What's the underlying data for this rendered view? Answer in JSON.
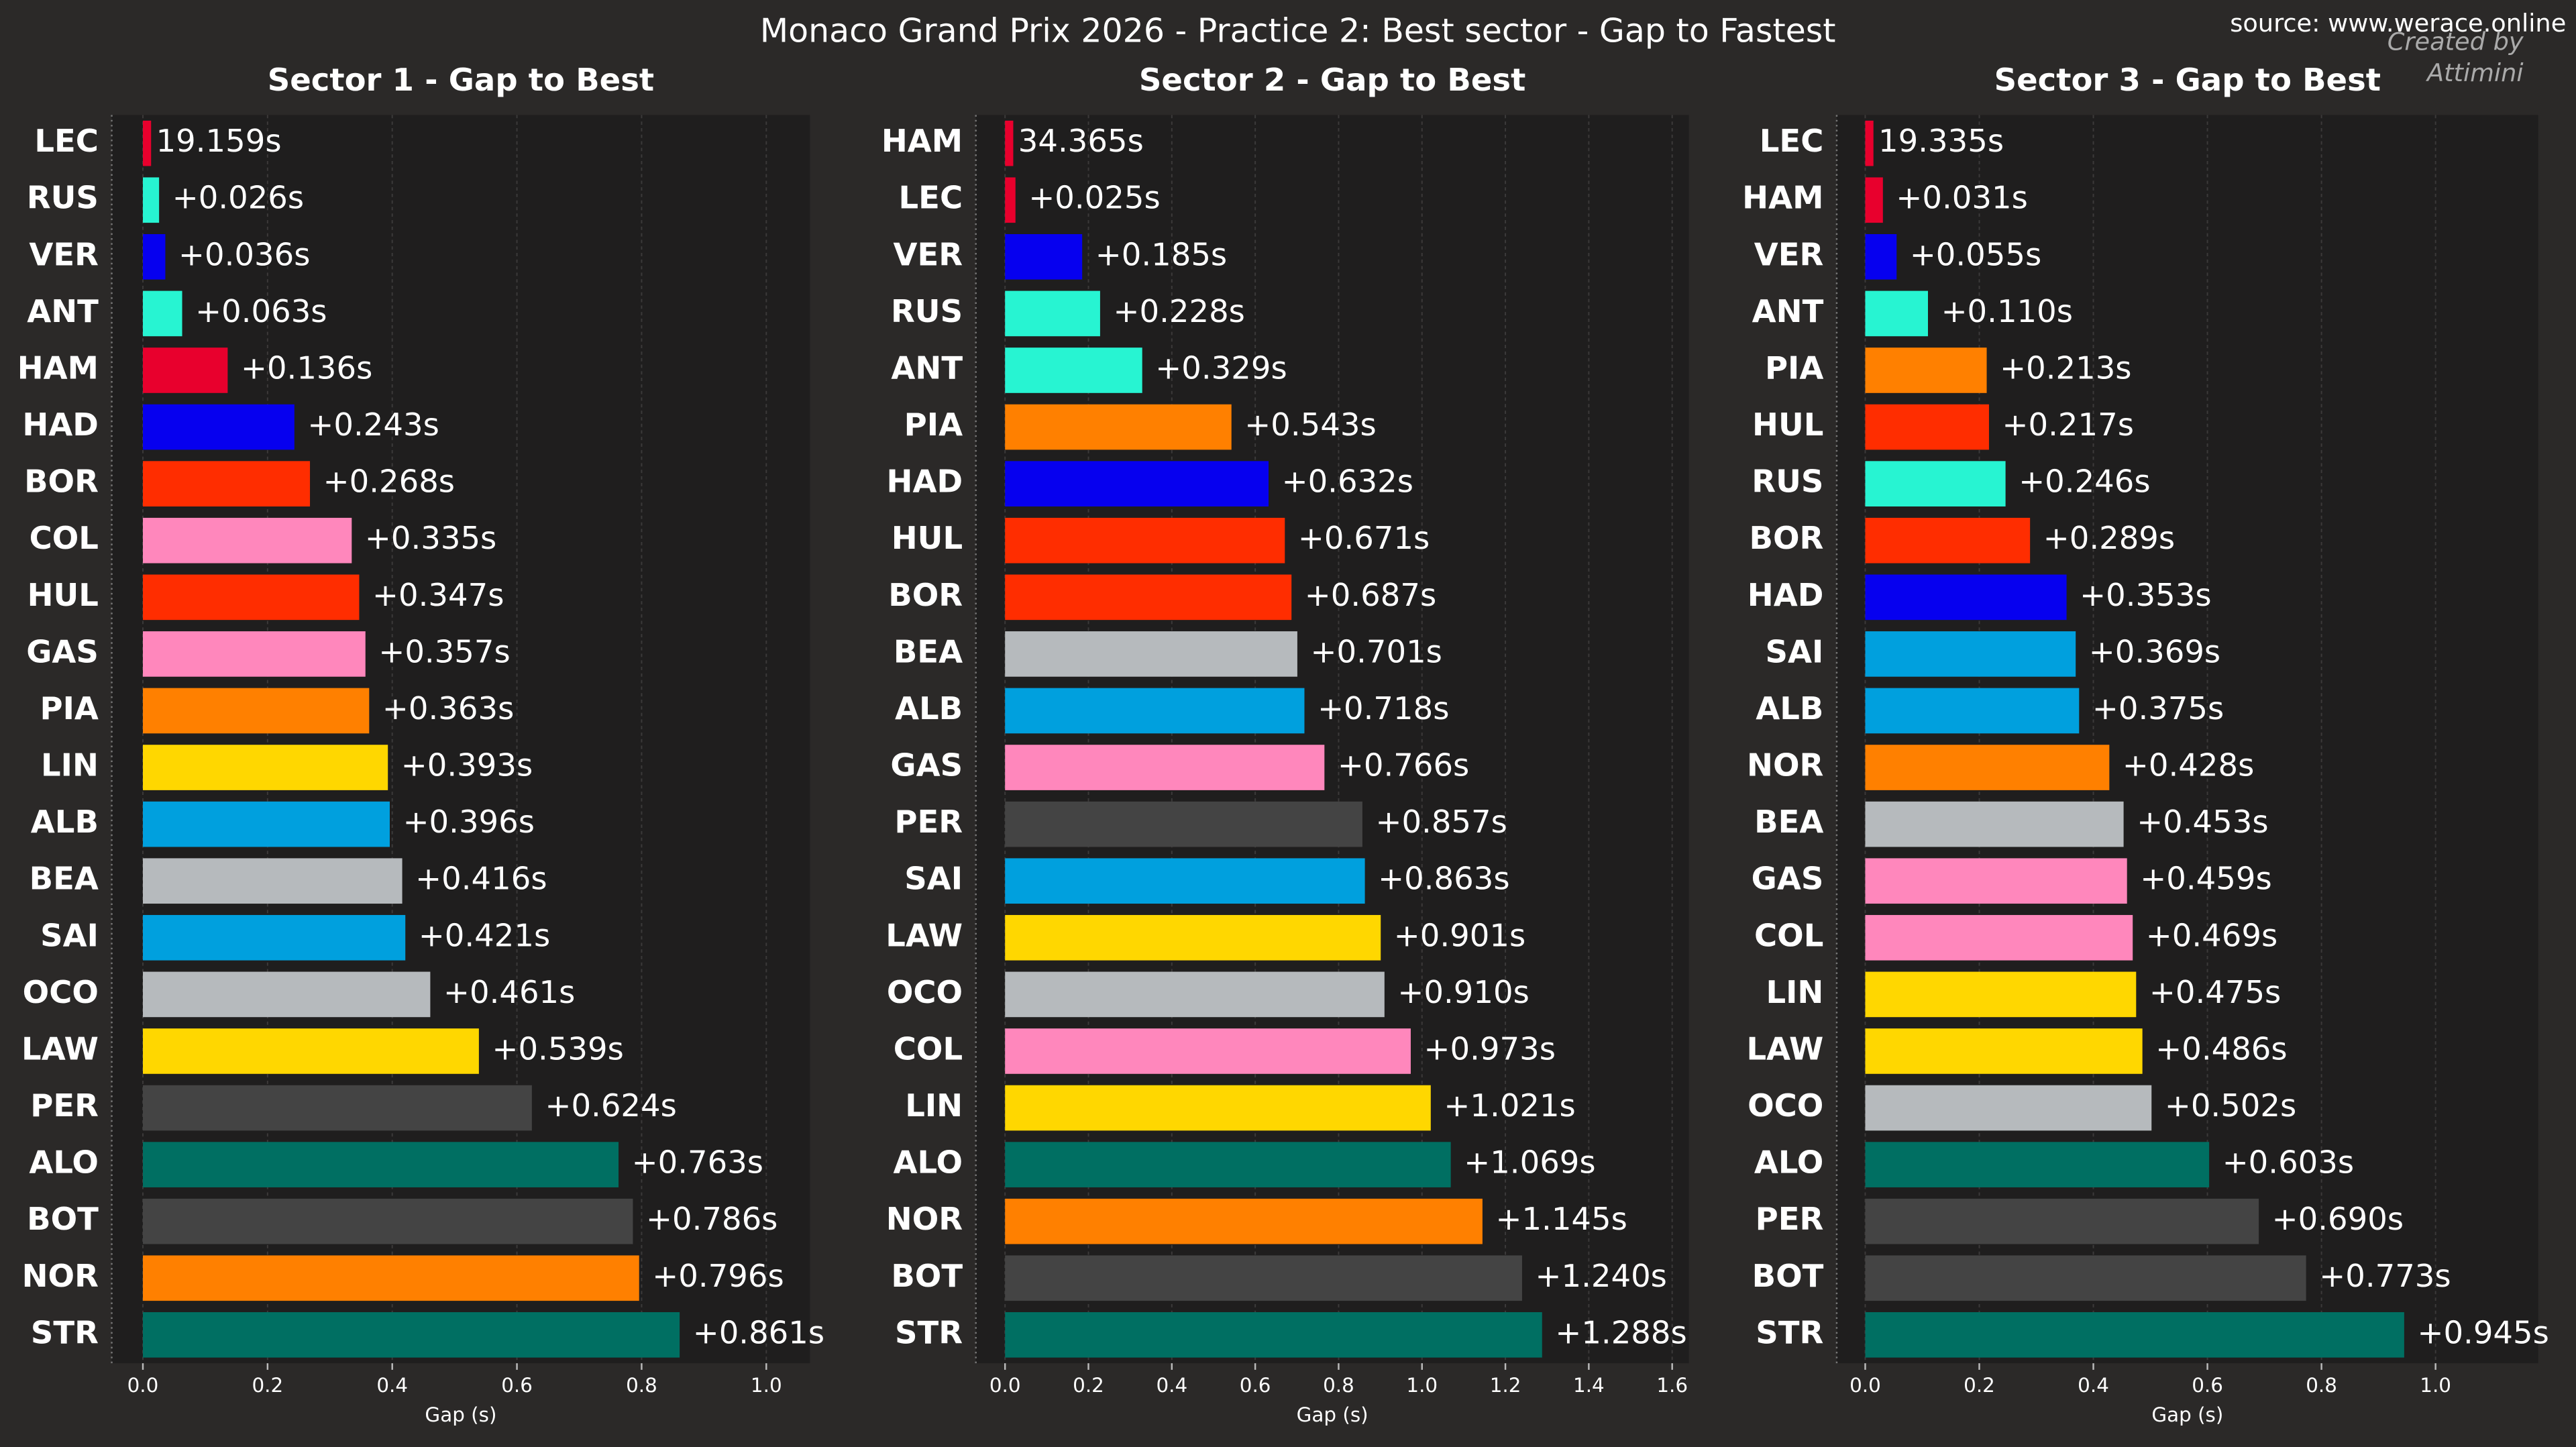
{
  "title": "Monaco Grand Prix 2026 - Practice 2: Best sector - Gap to Fastest",
  "source": "source: www.werace.online",
  "credit": "Created by\nAttimini",
  "chart_data": [
    {
      "type": "bar",
      "orientation": "horizontal",
      "title": "Sector 1 - Gap to Best",
      "xlabel": "Gap (s)",
      "categories": [
        "LEC",
        "RUS",
        "VER",
        "ANT",
        "HAM",
        "HAD",
        "BOR",
        "COL",
        "HUL",
        "GAS",
        "PIA",
        "LIN",
        "ALB",
        "BEA",
        "SAI",
        "OCO",
        "LAW",
        "PER",
        "ALO",
        "BOT",
        "NOR",
        "STR"
      ],
      "values": [
        0,
        0.026,
        0.036,
        0.063,
        0.136,
        0.243,
        0.268,
        0.335,
        0.347,
        0.357,
        0.363,
        0.393,
        0.396,
        0.416,
        0.421,
        0.461,
        0.539,
        0.624,
        0.763,
        0.786,
        0.796,
        0.861
      ],
      "value_labels": [
        null,
        "+0.026s",
        "+0.036s",
        "+0.063s",
        "+0.136s",
        "+0.243s",
        "+0.268s",
        "+0.335s",
        "+0.347s",
        "+0.357s",
        "+0.363s",
        "+0.393s",
        "+0.396s",
        "+0.416s",
        "+0.421s",
        "+0.461s",
        "+0.539s",
        "+0.624s",
        "+0.763s",
        "+0.786s",
        "+0.796s",
        "+0.861s"
      ],
      "colors": [
        "#e8002d",
        "#27f4d2",
        "#0600ef",
        "#27f4d2",
        "#e8002d",
        "#0600ef",
        "#ff2d00",
        "#ff87bc",
        "#ff2d00",
        "#ff87bc",
        "#ff8000",
        "#ffd700",
        "#00a0de",
        "#b6babd",
        "#00a0de",
        "#b6babd",
        "#ffd700",
        "#444444",
        "#006f62",
        "#444444",
        "#ff8000",
        "#006f62"
      ],
      "best_time": 19.159,
      "best_time_label": "19.159s",
      "xlim": [
        -0.05,
        1.07
      ],
      "xticks": [
        {
          "value": 0,
          "label": "0.0"
        },
        0.2,
        0.4,
        0.6,
        0.8,
        {
          "value": 1,
          "label": "1.0"
        }
      ],
      "grid": true
    },
    {
      "type": "bar",
      "orientation": "horizontal",
      "title": "Sector 2 - Gap to Best",
      "xlabel": "Gap (s)",
      "categories": [
        "HAM",
        "LEC",
        "VER",
        "RUS",
        "ANT",
        "PIA",
        "HAD",
        "HUL",
        "BOR",
        "BEA",
        "ALB",
        "GAS",
        "PER",
        "SAI",
        "LAW",
        "OCO",
        "COL",
        "LIN",
        "ALO",
        "NOR",
        "BOT",
        "STR"
      ],
      "values": [
        0,
        0.025,
        0.185,
        0.228,
        0.329,
        0.543,
        0.632,
        0.671,
        0.687,
        0.701,
        0.718,
        0.766,
        0.857,
        0.863,
        0.901,
        0.91,
        0.973,
        1.021,
        1.069,
        1.145,
        1.24,
        1.288
      ],
      "value_labels": [
        null,
        "+0.025s",
        "+0.185s",
        "+0.228s",
        "+0.329s",
        "+0.543s",
        "+0.632s",
        "+0.671s",
        "+0.687s",
        "+0.701s",
        "+0.718s",
        "+0.766s",
        "+0.857s",
        "+0.863s",
        "+0.901s",
        "+0.910s",
        "+0.973s",
        "+1.021s",
        "+1.069s",
        "+1.145s",
        "+1.240s",
        "+1.288s"
      ],
      "colors": [
        "#e8002d",
        "#e8002d",
        "#0600ef",
        "#27f4d2",
        "#27f4d2",
        "#ff8000",
        "#0600ef",
        "#ff2d00",
        "#ff2d00",
        "#b6babd",
        "#00a0de",
        "#ff87bc",
        "#444444",
        "#00a0de",
        "#ffd700",
        "#b6babd",
        "#ff87bc",
        "#ffd700",
        "#006f62",
        "#ff8000",
        "#444444",
        "#006f62"
      ],
      "best_time": 34.365,
      "best_time_label": "34.365s",
      "xlim": [
        -0.07,
        1.64
      ],
      "xticks": [
        {
          "value": 0,
          "label": "0.0"
        },
        0.2,
        0.4,
        0.6,
        0.8,
        {
          "value": 1,
          "label": "1.0"
        },
        1.2,
        1.4,
        1.6
      ],
      "grid": true
    },
    {
      "type": "bar",
      "orientation": "horizontal",
      "title": "Sector 3 - Gap to Best",
      "xlabel": "Gap (s)",
      "categories": [
        "LEC",
        "HAM",
        "VER",
        "ANT",
        "PIA",
        "HUL",
        "RUS",
        "BOR",
        "HAD",
        "SAI",
        "ALB",
        "NOR",
        "BEA",
        "GAS",
        "COL",
        "LIN",
        "LAW",
        "OCO",
        "ALO",
        "PER",
        "BOT",
        "STR"
      ],
      "values": [
        0,
        0.031,
        0.055,
        0.11,
        0.213,
        0.217,
        0.246,
        0.289,
        0.353,
        0.369,
        0.375,
        0.428,
        0.453,
        0.459,
        0.469,
        0.475,
        0.486,
        0.502,
        0.603,
        0.69,
        0.773,
        0.945
      ],
      "value_labels": [
        null,
        "+0.031s",
        "+0.055s",
        "+0.110s",
        "+0.213s",
        "+0.217s",
        "+0.246s",
        "+0.289s",
        "+0.353s",
        "+0.369s",
        "+0.375s",
        "+0.428s",
        "+0.453s",
        "+0.459s",
        "+0.469s",
        "+0.475s",
        "+0.486s",
        "+0.502s",
        "+0.603s",
        "+0.690s",
        "+0.773s",
        "+0.945s"
      ],
      "colors": [
        "#e8002d",
        "#e8002d",
        "#0600ef",
        "#27f4d2",
        "#ff8000",
        "#ff2d00",
        "#27f4d2",
        "#ff2d00",
        "#0600ef",
        "#00a0de",
        "#00a0de",
        "#ff8000",
        "#b6babd",
        "#ff87bc",
        "#ff87bc",
        "#ffd700",
        "#ffd700",
        "#b6babd",
        "#006f62",
        "#444444",
        "#444444",
        "#006f62"
      ],
      "best_time": 19.335,
      "best_time_label": "19.335s",
      "xlim": [
        -0.05,
        1.18
      ],
      "xticks": [
        {
          "value": 0,
          "label": "0.0"
        },
        0.2,
        0.4,
        0.6,
        0.8,
        {
          "value": 1,
          "label": "1.0"
        }
      ],
      "grid": true
    }
  ]
}
